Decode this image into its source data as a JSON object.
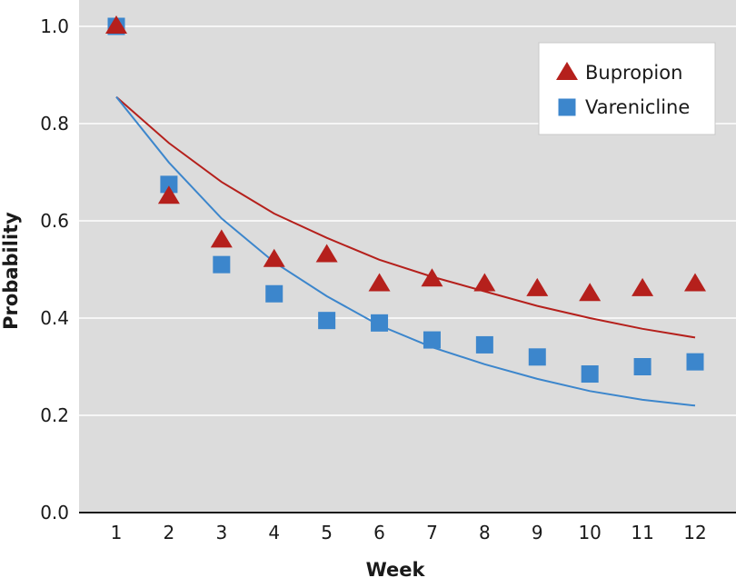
{
  "chart_data": {
    "type": "scatter",
    "title": "",
    "xlabel": "Week",
    "ylabel": "Probability",
    "x": [
      1,
      2,
      3,
      4,
      5,
      6,
      7,
      8,
      9,
      10,
      11,
      12
    ],
    "xlim": [
      0.25,
      12.75
    ],
    "ylim": [
      0.0,
      1.0
    ],
    "yticks": [
      0.0,
      0.2,
      0.4,
      0.6,
      0.8,
      1.0
    ],
    "ytick_labels": [
      "0.0",
      "0.2",
      "0.4",
      "0.6",
      "0.8",
      "1.0"
    ],
    "xtick_labels": [
      "1",
      "2",
      "3",
      "4",
      "5",
      "6",
      "7",
      "8",
      "9",
      "10",
      "11",
      "12"
    ],
    "grid": "horizontal",
    "background": "#dcdcdc",
    "legend_position": "top-right",
    "series": [
      {
        "name": "Bupropion",
        "marker": "triangle",
        "color": "#b5201c",
        "values": [
          1.0,
          0.65,
          0.56,
          0.52,
          0.53,
          0.47,
          0.48,
          0.47,
          0.46,
          0.45,
          0.46,
          0.47
        ],
        "fit": [
          0.855,
          0.76,
          0.68,
          0.615,
          0.565,
          0.52,
          0.485,
          0.455,
          0.425,
          0.4,
          0.378,
          0.36
        ]
      },
      {
        "name": "Varenicline",
        "marker": "square",
        "color": "#3c86cc",
        "values": [
          1.0,
          0.675,
          0.51,
          0.45,
          0.395,
          0.39,
          0.355,
          0.345,
          0.32,
          0.285,
          0.3,
          0.31
        ],
        "fit": [
          0.855,
          0.72,
          0.605,
          0.515,
          0.445,
          0.385,
          0.34,
          0.305,
          0.275,
          0.25,
          0.232,
          0.22
        ]
      }
    ]
  }
}
